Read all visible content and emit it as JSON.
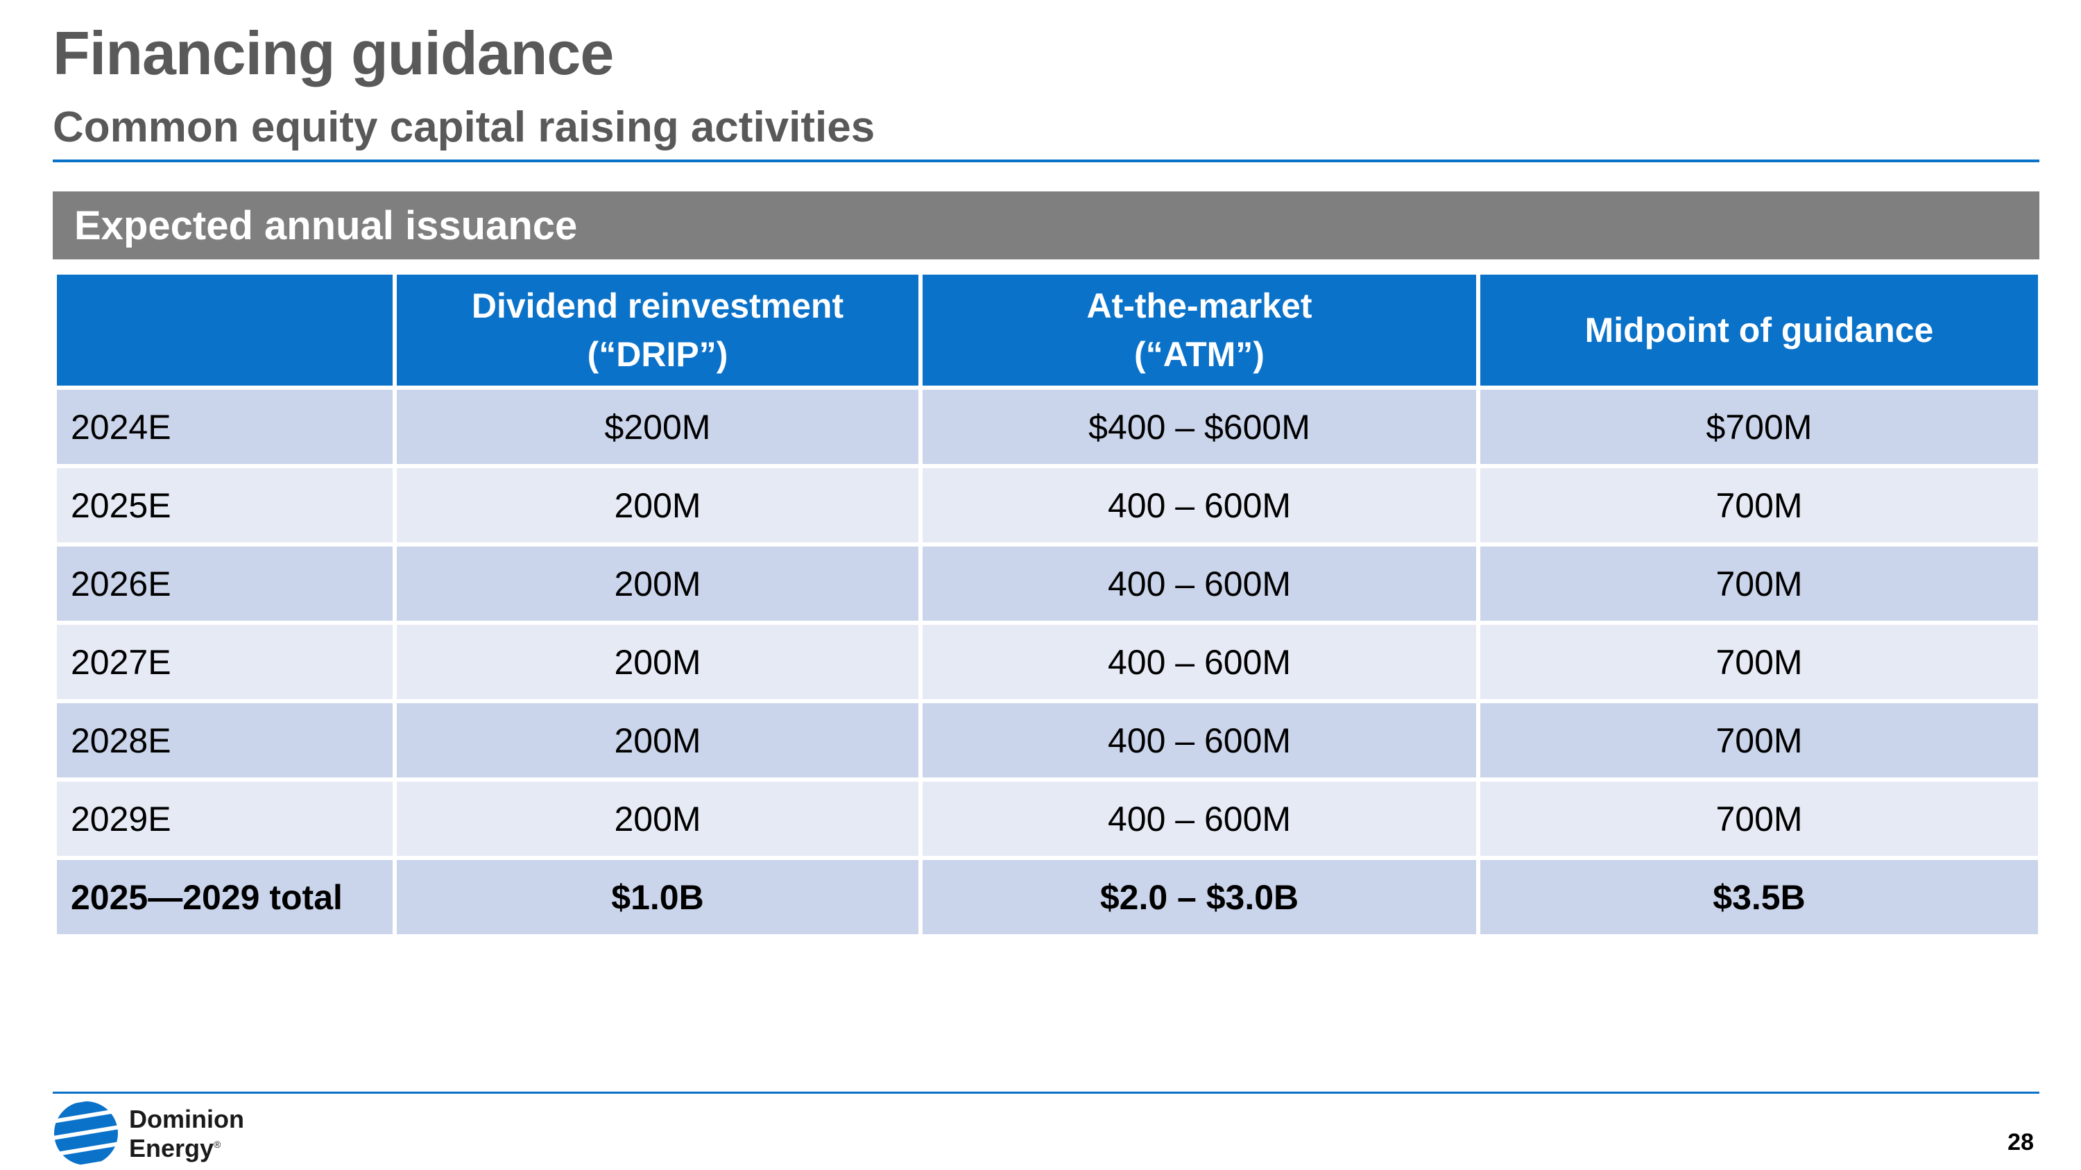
{
  "header": {
    "title": "Financing guidance",
    "subtitle": "Common equity capital raising activities"
  },
  "section": {
    "title": "Expected annual issuance"
  },
  "table": {
    "columns": [
      {
        "line1": "",
        "line2": ""
      },
      {
        "line1": "Dividend reinvestment",
        "line2": "(“DRIP”)"
      },
      {
        "line1": "At-the-market",
        "line2": "(“ATM”)"
      },
      {
        "line1": "Midpoint of guidance",
        "line2": ""
      }
    ],
    "rows": [
      [
        "2024E",
        "$200M",
        "$400 – $600M",
        "$700M"
      ],
      [
        "2025E",
        "200M",
        "400 – 600M",
        "700M"
      ],
      [
        "2026E",
        "200M",
        "400 – 600M",
        "700M"
      ],
      [
        "2027E",
        "200M",
        "400 – 600M",
        "700M"
      ],
      [
        "2028E",
        "200M",
        "400 – 600M",
        "700M"
      ],
      [
        "2029E",
        "200M",
        "400 – 600M",
        "700M"
      ]
    ],
    "total": [
      "2025—2029 total",
      "$1.0B",
      "$2.0 – $3.0B",
      "$3.5B"
    ]
  },
  "footer": {
    "logo_line1": "Dominion",
    "logo_line2": "Energy",
    "logo_mark": "®",
    "page_number": "28"
  },
  "colors": {
    "accent_blue": "#0a72c9",
    "section_gray": "#7f7f7f",
    "row_dark": "#cad4ea",
    "row_light": "#e6eaf5",
    "title_gray": "#595959"
  }
}
